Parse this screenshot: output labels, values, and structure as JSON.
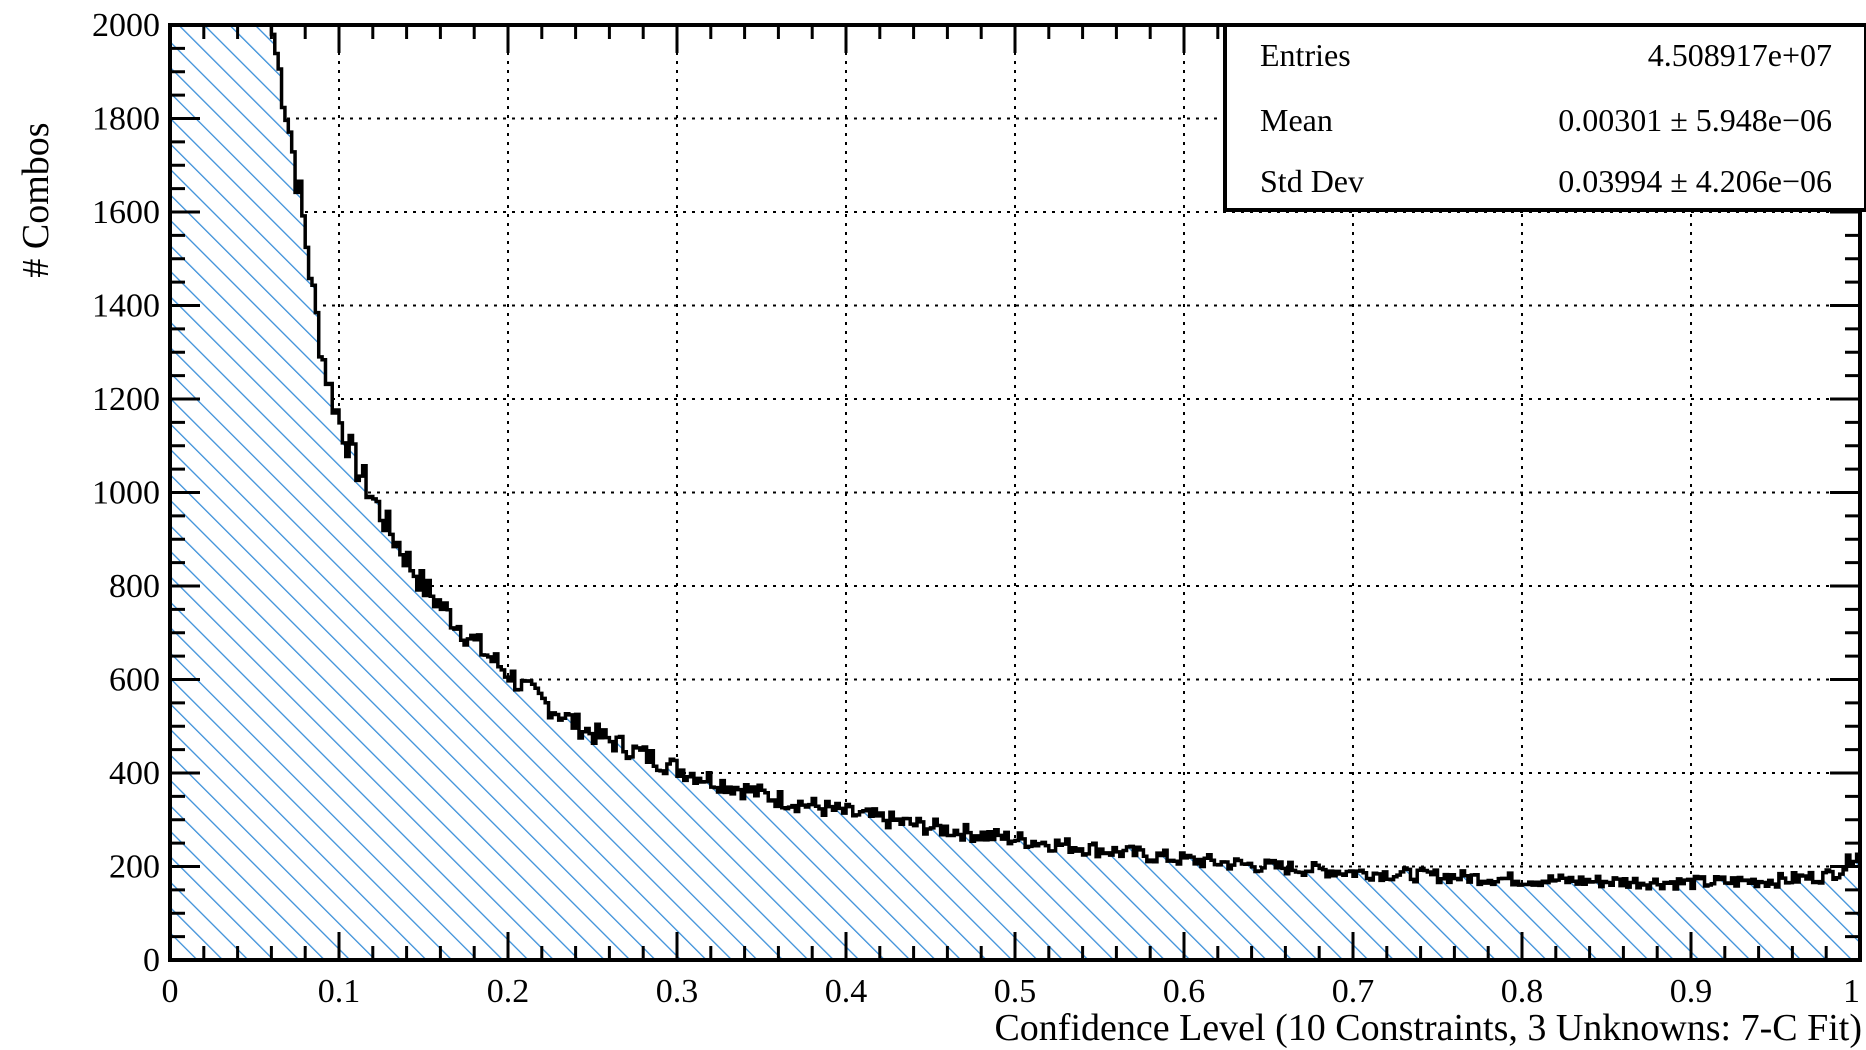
{
  "chart_data": {
    "type": "area",
    "title": "",
    "xlabel": "Confidence Level (10 Constraints, 3 Unknowns: 7-C Fit)",
    "ylabel": "# Combos",
    "xlim": [
      0,
      1
    ],
    "ylim": [
      0,
      2000
    ],
    "grid": true,
    "fill_color": "#3a8fd9",
    "line_color": "#000000",
    "x_ticks": [
      {
        "value": 0,
        "label": "0"
      },
      {
        "value": 0.1,
        "label": "0.1"
      },
      {
        "value": 0.2,
        "label": "0.2"
      },
      {
        "value": 0.3,
        "label": "0.3"
      },
      {
        "value": 0.4,
        "label": "0.4"
      },
      {
        "value": 0.5,
        "label": "0.5"
      },
      {
        "value": 0.6,
        "label": "0.6"
      },
      {
        "value": 0.7,
        "label": "0.7"
      },
      {
        "value": 0.8,
        "label": "0.8"
      },
      {
        "value": 0.9,
        "label": "0.9"
      },
      {
        "value": 1,
        "label": "1"
      }
    ],
    "y_ticks": [
      {
        "value": 0,
        "label": "0"
      },
      {
        "value": 200,
        "label": "200"
      },
      {
        "value": 400,
        "label": "400"
      },
      {
        "value": 600,
        "label": "600"
      },
      {
        "value": 800,
        "label": "800"
      },
      {
        "value": 1000,
        "label": "1000"
      },
      {
        "value": 1200,
        "label": "1200"
      },
      {
        "value": 1400,
        "label": "1400"
      },
      {
        "value": 1600,
        "label": "1600"
      },
      {
        "value": 1800,
        "label": "1800"
      },
      {
        "value": 2000,
        "label": "2000"
      }
    ],
    "series": [
      {
        "x": [
          0,
          0.06,
          0.065,
          0.07,
          0.075,
          0.08,
          0.085,
          0.09,
          0.095,
          0.1,
          0.11,
          0.12,
          0.13,
          0.14,
          0.15,
          0.16,
          0.17,
          0.18,
          0.19,
          0.2,
          0.21,
          0.22,
          0.23,
          0.24,
          0.25,
          0.27,
          0.3,
          0.33,
          0.36,
          0.4,
          0.44,
          0.48,
          0.52,
          0.56,
          0.6,
          0.65,
          0.7,
          0.75,
          0.8,
          0.85,
          0.9,
          0.95,
          0.98,
          0.99,
          1.0
        ],
        "y": [
          2000,
          2000,
          1900,
          1800,
          1680,
          1560,
          1420,
          1300,
          1220,
          1160,
          1060,
          990,
          920,
          860,
          800,
          760,
          720,
          680,
          645,
          615,
          580,
          555,
          530,
          505,
          485,
          455,
          410,
          375,
          345,
          315,
          290,
          268,
          250,
          232,
          215,
          200,
          188,
          180,
          172,
          168,
          165,
          170,
          180,
          195,
          240
        ]
      }
    ],
    "stats_box": [
      {
        "label": "Entries",
        "value": "4.508917e+07"
      },
      {
        "label": "Mean",
        "value": "0.00301 ± 5.948e−06"
      },
      {
        "label": "Std Dev",
        "value": "0.03994 ± 4.206e−06"
      }
    ]
  }
}
